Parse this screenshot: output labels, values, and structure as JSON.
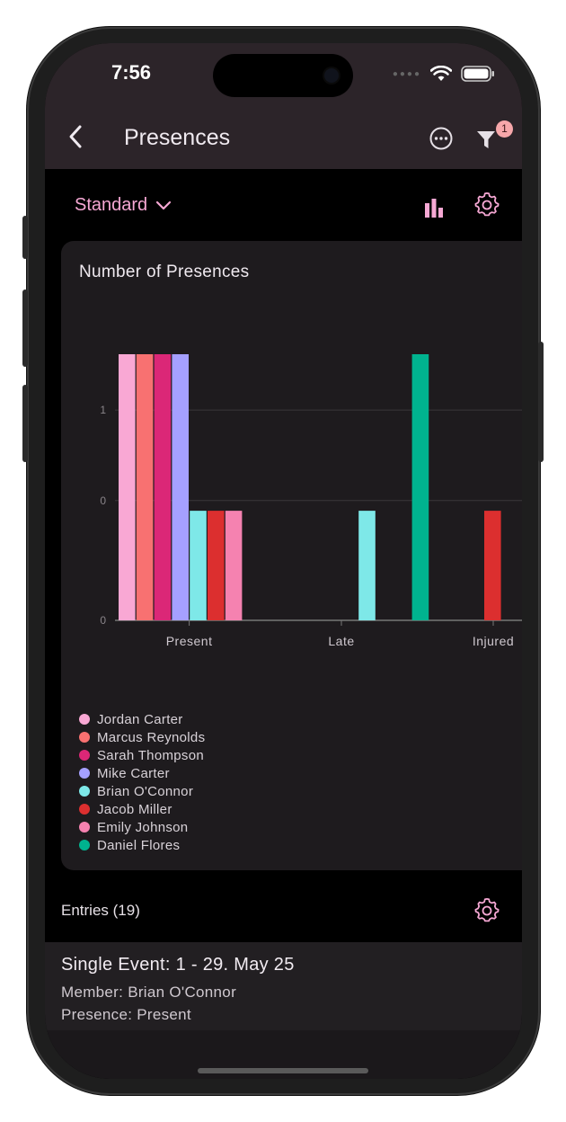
{
  "status": {
    "time": "7:56"
  },
  "header": {
    "title": "Presences",
    "filter_count": "1"
  },
  "toolbar": {
    "selector_label": "Standard"
  },
  "chart_data": {
    "type": "bar",
    "title": "Number of Presences",
    "categories": [
      "Present",
      "Late",
      "Injured"
    ],
    "y_ticks": [
      "0",
      "0",
      "1"
    ],
    "series": [
      {
        "name": "Jordan Carter",
        "color": "#f9a8d4",
        "values": [
          1.7,
          0,
          0
        ]
      },
      {
        "name": "Marcus Reynolds",
        "color": "#f87171",
        "values": [
          1.7,
          0,
          0
        ]
      },
      {
        "name": "Sarah Thompson",
        "color": "#db2777",
        "values": [
          1.7,
          0,
          0
        ]
      },
      {
        "name": "Mike Carter",
        "color": "#a5a0ff",
        "values": [
          1.7,
          0,
          0
        ]
      },
      {
        "name": "Brian O'Connor",
        "color": "#7ee8e8",
        "values": [
          0.7,
          0.7,
          0
        ]
      },
      {
        "name": "Jacob Miller",
        "color": "#dc2f2f",
        "values": [
          0.7,
          0,
          0.7
        ]
      },
      {
        "name": "Emily Johnson",
        "color": "#f582b0",
        "values": [
          0.7,
          0,
          0
        ]
      },
      {
        "name": "Daniel Flores",
        "color": "#00b38f",
        "values": [
          0,
          1.7,
          0
        ]
      }
    ],
    "ylim": [
      0,
      1.7
    ],
    "legend_position": "bottom-left"
  },
  "entries": {
    "heading": "Entries (19)",
    "items": [
      {
        "title": "Single Event: 1 - 29. May 25",
        "member": "Member: Brian O'Connor",
        "presence": "Presence: Present"
      }
    ]
  }
}
